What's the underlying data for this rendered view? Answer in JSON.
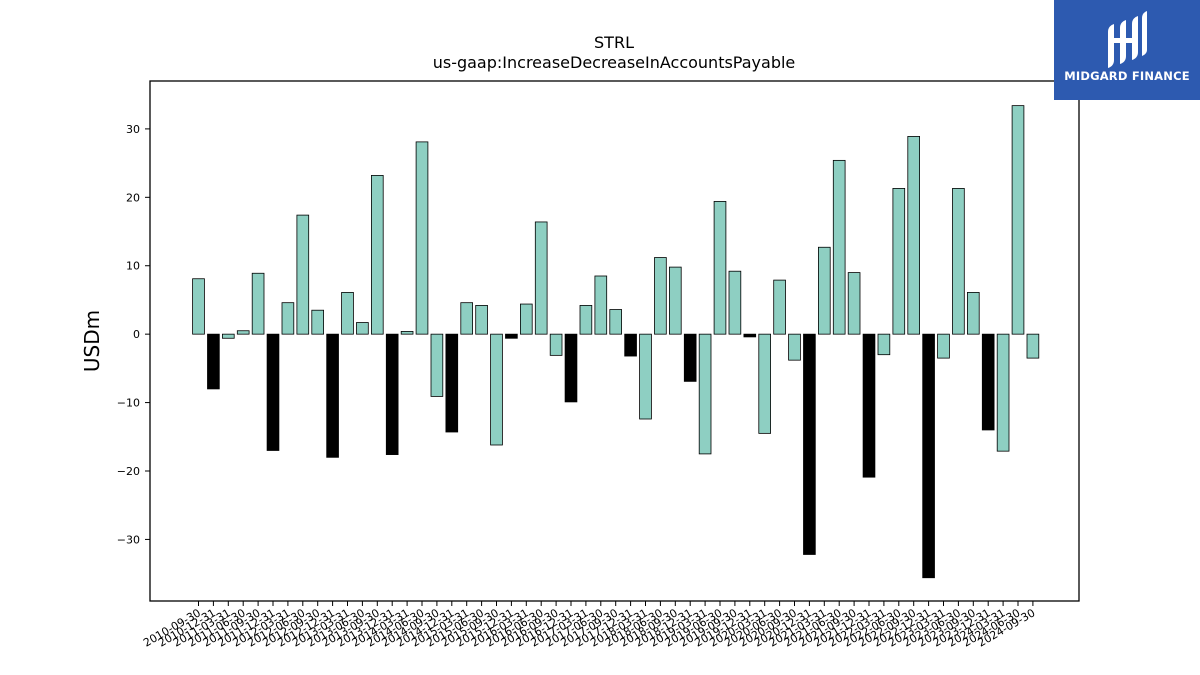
{
  "brand": {
    "name": "MIDGARD FINANCE",
    "icon": "midgard-logo-icon",
    "background": "#2d5ab0"
  },
  "chart_data": {
    "type": "bar",
    "title": "STRL",
    "subtitle": "us-gaap:IncreaseDecreaseInAccountsPayable",
    "xlabel": "",
    "ylabel": "USDm",
    "ylim": [
      -39,
      37
    ],
    "yticks": [
      -30,
      -20,
      -10,
      0,
      10,
      20,
      30
    ],
    "grid": false,
    "colors": {
      "default": "#8ecfc2",
      "annual": "#000000",
      "edge": "#000000"
    },
    "categories": [
      "2010-09-30",
      "2010-12-31",
      "2011-03-31",
      "2011-06-30",
      "2011-09-30",
      "2011-12-31",
      "2012-03-31",
      "2012-06-30",
      "2012-09-30",
      "2012-12-31",
      "2013-03-31",
      "2013-06-30",
      "2013-09-30",
      "2013-12-31",
      "2014-03-31",
      "2014-06-30",
      "2014-09-30",
      "2014-12-31",
      "2015-03-31",
      "2015-06-30",
      "2015-09-30",
      "2015-12-31",
      "2016-03-31",
      "2016-06-30",
      "2016-09-30",
      "2016-12-31",
      "2017-03-31",
      "2017-06-30",
      "2017-09-30",
      "2017-12-31",
      "2018-03-31",
      "2018-06-30",
      "2018-09-30",
      "2018-12-31",
      "2019-03-31",
      "2019-06-30",
      "2019-09-30",
      "2019-12-31",
      "2020-03-31",
      "2020-06-30",
      "2020-09-30",
      "2020-12-31",
      "2021-03-31",
      "2021-06-30",
      "2021-09-30",
      "2021-12-31",
      "2022-03-31",
      "2022-06-30",
      "2022-09-30",
      "2022-12-31",
      "2023-03-31",
      "2023-06-30",
      "2023-09-30",
      "2023-12-31",
      "2024-03-31",
      "2024-06-30",
      "2024-09-30"
    ],
    "values": [
      8.1,
      -8.0,
      -0.6,
      0.5,
      8.9,
      -17.0,
      4.6,
      17.4,
      3.5,
      -18.0,
      6.1,
      1.7,
      23.2,
      -17.6,
      0.4,
      28.1,
      -9.1,
      -14.3,
      4.6,
      4.2,
      -16.2,
      -0.6,
      4.4,
      16.4,
      -3.1,
      -9.9,
      4.2,
      8.5,
      3.6,
      -3.2,
      -12.4,
      11.2,
      9.8,
      -6.9,
      -17.5,
      19.4,
      9.2,
      -0.4,
      -14.5,
      7.9,
      -3.8,
      -32.2,
      12.7,
      25.4,
      9.0,
      -20.9,
      -3.0,
      21.3,
      28.9,
      -35.6,
      -3.5,
      21.3,
      6.1,
      -14.0,
      -17.1,
      33.4,
      -3.5
    ],
    "annual": [
      false,
      true,
      false,
      false,
      false,
      true,
      false,
      false,
      false,
      true,
      false,
      false,
      false,
      true,
      false,
      false,
      false,
      true,
      false,
      false,
      false,
      true,
      false,
      false,
      false,
      true,
      false,
      false,
      false,
      true,
      false,
      false,
      false,
      true,
      false,
      false,
      false,
      true,
      false,
      false,
      false,
      true,
      false,
      false,
      false,
      true,
      false,
      false,
      false,
      true,
      false,
      false,
      false,
      true,
      false,
      false,
      false
    ]
  }
}
